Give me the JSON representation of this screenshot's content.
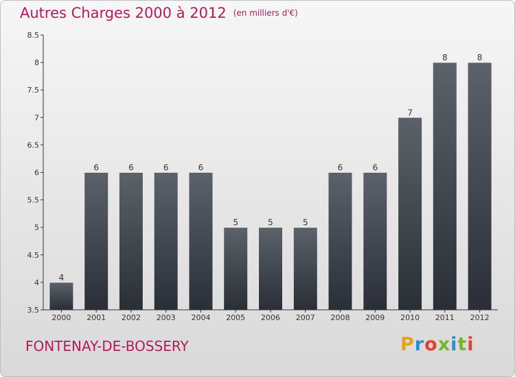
{
  "header": {
    "title": "Autres Charges 2000 à 2012",
    "subtitle": "(en milliers d'€)"
  },
  "footer": {
    "place": "FONTENAY-DE-BOSSERY",
    "logo_letters": [
      "P",
      "r",
      "o",
      "x",
      "i",
      "t",
      "i"
    ],
    "logo_colors": [
      "#e4a21a",
      "#2a8fd0",
      "#e0432e",
      "#7ab42c",
      "#2a8fd0",
      "#7ab42c",
      "#e0432e"
    ]
  },
  "chart_data": {
    "type": "bar",
    "title": "Autres Charges 2000 à 2012",
    "categories": [
      "2000",
      "2001",
      "2002",
      "2003",
      "2004",
      "2005",
      "2006",
      "2007",
      "2008",
      "2009",
      "2010",
      "2011",
      "2012"
    ],
    "values": [
      4,
      6,
      6,
      6,
      6,
      5,
      5,
      5,
      6,
      6,
      7,
      8,
      8
    ],
    "data_labels": [
      "4",
      "6",
      "6",
      "6",
      "6",
      "5",
      "5",
      "5",
      "6",
      "6",
      "7",
      "8",
      "8"
    ],
    "yticks": [
      "3.5",
      "4",
      "4.5",
      "5",
      "5.5",
      "6",
      "6.5",
      "7",
      "7.5",
      "8",
      "8.5"
    ],
    "ylim": [
      3.5,
      8.5
    ],
    "grid": false,
    "bar_color_top": "#5b626a",
    "bar_color_bottom": "#2a2f36",
    "axis_color": "#333333"
  }
}
